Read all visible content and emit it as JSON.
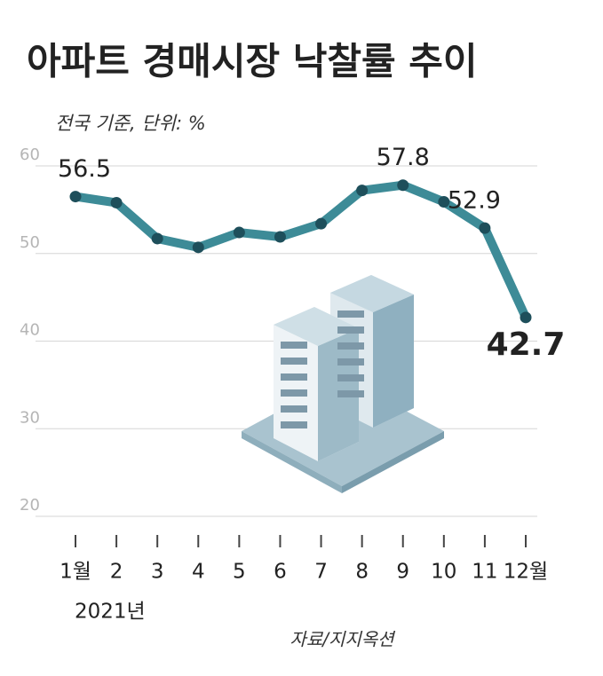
{
  "chart_data": {
    "type": "line",
    "title": "아파트 경매시장 낙찰률 추이",
    "subtitle": "전국 기준, 단위: %",
    "categories": [
      "1월",
      "2",
      "3",
      "4",
      "5",
      "6",
      "7",
      "8",
      "9",
      "10",
      "11",
      "12월"
    ],
    "year_label": "2021년",
    "series": [
      {
        "color": "#3d8b97",
        "values": [
          56.5,
          55.8,
          51.7,
          50.7,
          52.4,
          51.9,
          53.4,
          57.2,
          57.8,
          55.9,
          52.9,
          42.7
        ],
        "value_labels": [
          "56.5",
          null,
          null,
          null,
          null,
          null,
          null,
          null,
          "57.8",
          null,
          "52.9",
          "42.7"
        ]
      }
    ],
    "ylim": [
      20,
      60
    ],
    "yticks": [
      20,
      30,
      40,
      50,
      60
    ],
    "grid": true,
    "source": "자료/지지옥션"
  }
}
